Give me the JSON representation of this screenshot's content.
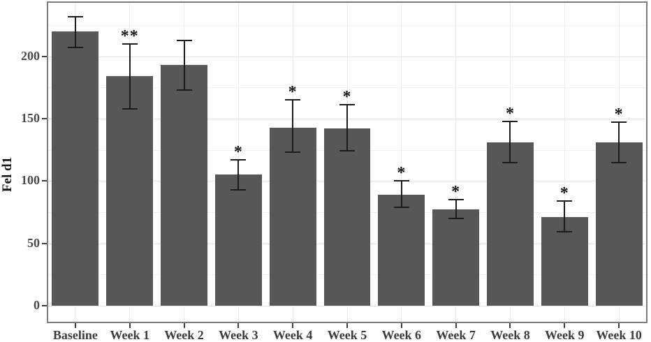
{
  "chart_data": {
    "type": "bar",
    "title": "",
    "xlabel": "",
    "ylabel": "Fel d1",
    "categories": [
      "Baseline",
      "Week 1",
      "Week 2",
      "Week 3",
      "Week 4",
      "Week 5",
      "Week 6",
      "Week 7",
      "Week 8",
      "Week 9",
      "Week 10"
    ],
    "values": [
      220,
      184,
      193,
      105,
      143,
      142,
      89,
      77,
      131,
      71,
      131
    ],
    "error_low": [
      207,
      158,
      173,
      93,
      123,
      124,
      79,
      70,
      115,
      59,
      115
    ],
    "error_high": [
      232,
      210,
      213,
      117,
      165,
      161,
      100,
      85,
      148,
      84,
      147
    ],
    "significance": [
      "",
      "**",
      "",
      "*",
      "*",
      "*",
      "*",
      "*",
      "*",
      "*",
      "*"
    ],
    "y_ticks": [
      0,
      50,
      100,
      150,
      200
    ],
    "ylim": [
      -13,
      243
    ],
    "grid": "major and minor horizontal, major vertical at categories",
    "legend_position": "none",
    "bar_width_fraction": 0.86,
    "colors": {
      "bar_fill": "#575757",
      "error_bar": "#1c1c1c",
      "panel_border": "#7d7d7d",
      "grid_major": "#e3e3e3",
      "grid_minor": "#f1f1f1",
      "grid_vertical": "#ededed",
      "tick_label": "#4a4a4a",
      "axis_title": "#161616",
      "background": "#ffffff"
    }
  }
}
